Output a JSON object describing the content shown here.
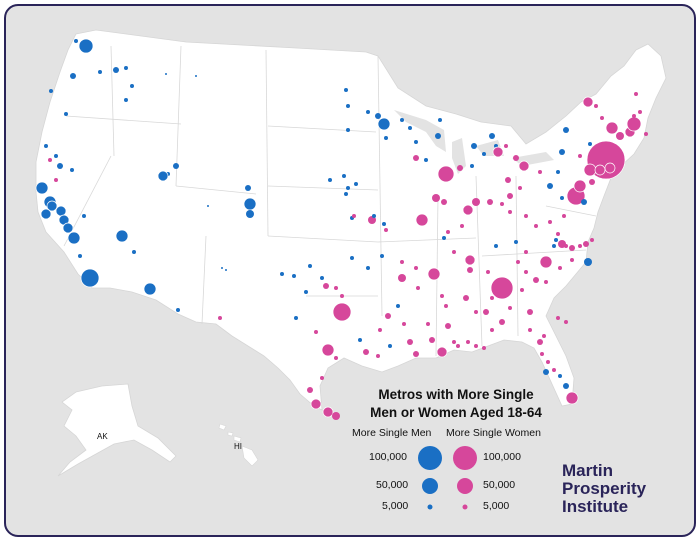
{
  "map": {
    "title_line1": "Metros with More Single",
    "title_line2": "Men or Women Aged 18-64",
    "legend": {
      "men_heading": "More Single Men",
      "women_heading": "More Single Women",
      "sizes": [
        "100,000",
        "50,000",
        "5,000"
      ]
    },
    "state_labels": {
      "alaska": "AK",
      "hawaii": "HI"
    },
    "colors": {
      "men": "#1a6fc4",
      "women": "#d6479b",
      "land": "#ffffff",
      "ocean": "#e3e3e3",
      "brand": "#2a2459"
    },
    "branding": {
      "line1": "Martin",
      "line2": "Prosperity",
      "line3": "Institute"
    }
  }
}
